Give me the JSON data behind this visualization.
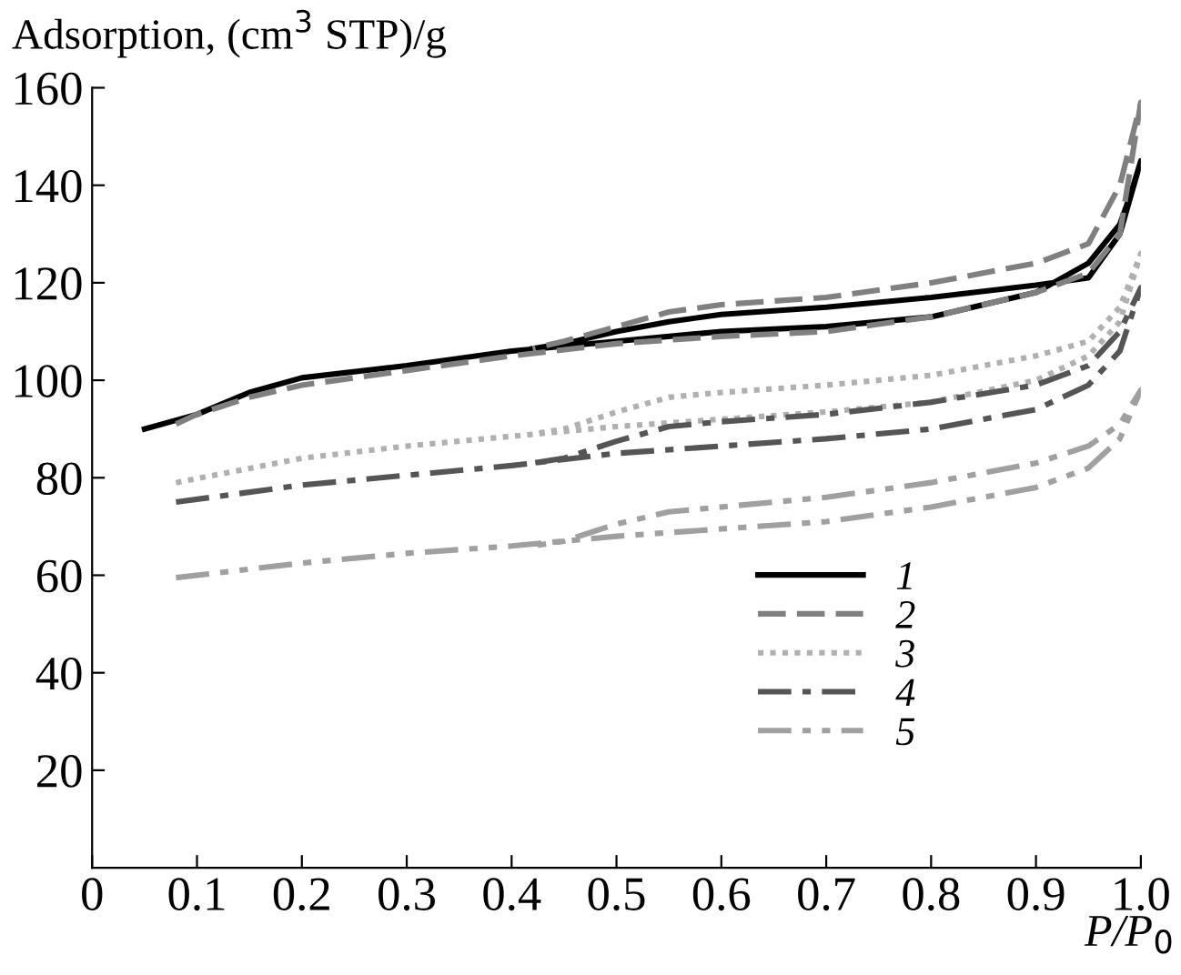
{
  "chart_data": {
    "type": "line",
    "ylabel": "Adsorption, (cm$^{3}$ STP)/g",
    "xlabel": "P/P$_{0}$",
    "xlim": [
      0,
      1.0
    ],
    "ylim": [
      0,
      160
    ],
    "xticks": [
      {
        "value": 0,
        "label": "0"
      },
      0.1,
      0.2,
      0.3,
      0.4,
      0.5,
      0.6,
      0.7,
      0.8,
      0.9,
      {
        "value": 1.0,
        "label": "1.0"
      }
    ],
    "yticks": [
      20,
      40,
      60,
      80,
      100,
      120,
      140,
      160
    ],
    "grid": false,
    "legend": "bottom right",
    "marker": "none",
    "series": [
      {
        "name": "1",
        "color": "#000000",
        "line_style": "solid",
        "x": [
          0.05,
          0.1,
          0.15,
          0.2,
          0.3,
          0.4,
          0.5,
          0.6,
          0.7,
          0.8,
          0.9,
          0.95,
          0.98,
          0.99,
          1.0,
          0.98,
          0.95,
          0.9,
          0.8,
          0.7,
          0.6,
          0.55,
          0.5,
          0.45,
          0.42
        ],
        "values": [
          90,
          93,
          97.5,
          100.5,
          103,
          106,
          108,
          110,
          111,
          113,
          118,
          124,
          132,
          138,
          145,
          130,
          121,
          119.5,
          117,
          115,
          113.5,
          112,
          110,
          107.5,
          106.5
        ]
      },
      {
        "name": "2",
        "color": "#808080",
        "line_style": "dashed",
        "x": [
          0.08,
          0.1,
          0.15,
          0.2,
          0.3,
          0.4,
          0.5,
          0.6,
          0.7,
          0.8,
          0.9,
          0.95,
          0.98,
          1.0,
          0.98,
          0.95,
          0.9,
          0.8,
          0.7,
          0.6,
          0.55,
          0.5,
          0.45,
          0.42
        ],
        "values": [
          91,
          93,
          96.5,
          99,
          102,
          105,
          107.5,
          109,
          110,
          113,
          118,
          122,
          130,
          157,
          140,
          128,
          124,
          120,
          117,
          115.5,
          114,
          111,
          108,
          106.5
        ]
      },
      {
        "name": "3",
        "color": "#b0b0b0",
        "line_style": "dotted",
        "x": [
          0.08,
          0.2,
          0.3,
          0.4,
          0.5,
          0.6,
          0.7,
          0.8,
          0.9,
          0.95,
          0.98,
          1.0,
          0.98,
          0.95,
          0.9,
          0.8,
          0.7,
          0.6,
          0.55,
          0.5,
          0.45,
          0.42
        ],
        "values": [
          79,
          84,
          86.5,
          88.5,
          90.5,
          92,
          93.5,
          95.5,
          100,
          105,
          112,
          126,
          115,
          108,
          105,
          101,
          99,
          97.5,
          96.5,
          93.5,
          90,
          89
        ]
      },
      {
        "name": "4",
        "color": "#555555",
        "line_style": "dashdot",
        "x": [
          0.08,
          0.2,
          0.3,
          0.4,
          0.5,
          0.6,
          0.7,
          0.8,
          0.9,
          0.95,
          0.98,
          1.0,
          0.98,
          0.95,
          0.9,
          0.8,
          0.7,
          0.6,
          0.55,
          0.5,
          0.45,
          0.42
        ],
        "values": [
          75,
          78.5,
          80.5,
          82.5,
          85,
          86.5,
          88,
          90,
          94,
          99,
          106,
          119,
          110,
          103,
          99,
          95.5,
          93,
          91.5,
          90.5,
          87.5,
          84,
          83
        ]
      },
      {
        "name": "5",
        "color": "#a0a0a0",
        "line_style": "dashdotdot",
        "x": [
          0.08,
          0.2,
          0.3,
          0.4,
          0.5,
          0.6,
          0.7,
          0.8,
          0.9,
          0.95,
          0.98,
          1.0,
          0.98,
          0.95,
          0.9,
          0.8,
          0.7,
          0.6,
          0.55,
          0.5,
          0.45,
          0.42
        ],
        "values": [
          59.5,
          62.5,
          64.5,
          66,
          68,
          69.5,
          71,
          74,
          78,
          82,
          88,
          98,
          91,
          86.5,
          83,
          79,
          76,
          74,
          73,
          70.5,
          67,
          66
        ]
      }
    ]
  }
}
